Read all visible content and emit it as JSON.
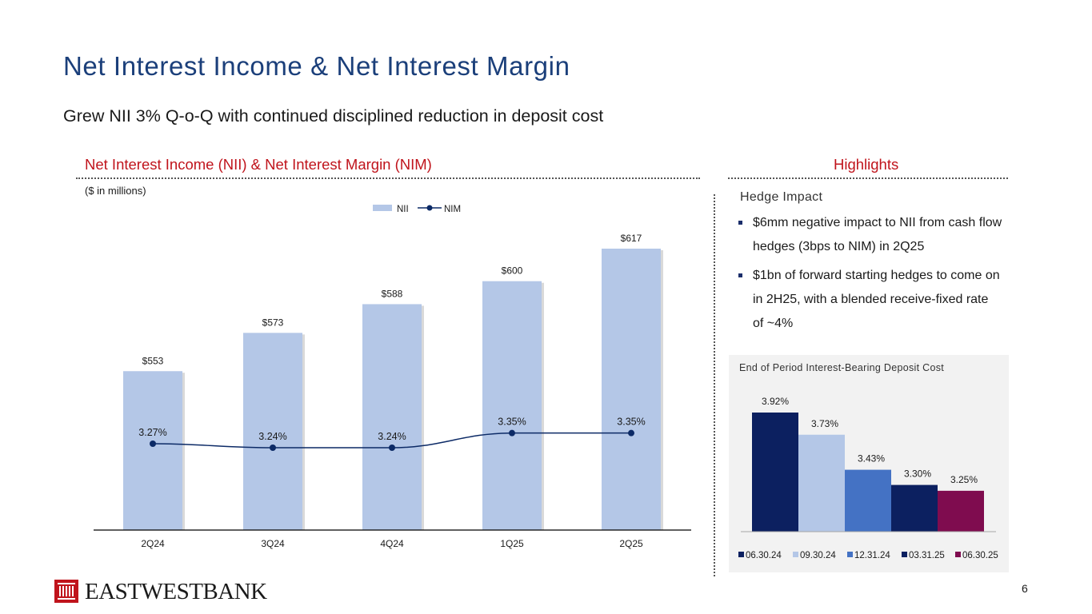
{
  "page": {
    "title": "Net Interest Income & Net Interest Margin",
    "subtitle": "Grew NII 3% Q-o-Q with continued disciplined reduction in deposit cost",
    "page_number": "6",
    "brand": "EASTWESTBANK",
    "colors": {
      "title": "#1b3f7a",
      "section_heading": "#c0141c",
      "nii_bar": "#b4c7e7",
      "nim_line": "#0c2a66"
    }
  },
  "left_section": {
    "heading": "Net Interest Income (NII) & Net Interest Margin (NIM)",
    "units_note": "($ in millions)"
  },
  "highlights": {
    "heading": "Highlights",
    "subheading": "Hedge Impact",
    "bullets": [
      "$6mm negative impact to NII from cash flow hedges (3bps to NIM) in 2Q25",
      "$1bn of forward starting hedges to come on in 2H25, with a blended receive-fixed rate of  ~4%"
    ]
  },
  "chart_data": [
    {
      "type": "bar",
      "categories": [
        "2Q24",
        "3Q24",
        "4Q24",
        "1Q25",
        "2Q25"
      ],
      "series": [
        {
          "name": "NII",
          "type": "bar",
          "values": [
            553,
            573,
            588,
            600,
            617
          ],
          "labels": [
            "$553",
            "$573",
            "$588",
            "$600",
            "$617"
          ],
          "color": "#b4c7e7"
        },
        {
          "name": "NIM",
          "type": "line",
          "values": [
            3.27,
            3.24,
            3.24,
            3.35,
            3.35
          ],
          "labels": [
            "3.27%",
            "3.24%",
            "3.24%",
            "3.35%",
            "3.35%"
          ],
          "color": "#0c2a66"
        }
      ],
      "legend": "top-center",
      "grid": false
    },
    {
      "type": "bar",
      "title": "End of Period Interest-Bearing Deposit Cost",
      "series": [
        {
          "name": "06.30.24",
          "value": 3.92,
          "label": "3.92%",
          "color": "#0c2060"
        },
        {
          "name": "09.30.24",
          "value": 3.73,
          "label": "3.73%",
          "color": "#b4c7e7"
        },
        {
          "name": "12.31.24",
          "value": 3.43,
          "label": "3.43%",
          "color": "#4472c4"
        },
        {
          "name": "03.31.25",
          "value": 3.3,
          "label": "3.30%",
          "color": "#0c2060"
        },
        {
          "name": "06.30.25",
          "value": 3.25,
          "label": "3.25%",
          "color": "#7f0c4f"
        }
      ],
      "legend": "bottom",
      "grid": false
    }
  ]
}
